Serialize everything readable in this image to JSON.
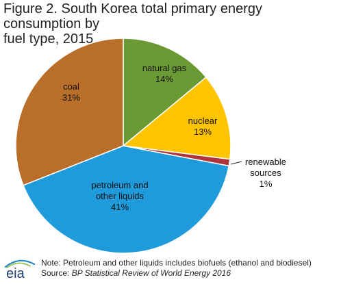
{
  "title": {
    "line1": "Figure 2. South Korea total primary energy consumption by",
    "line2": "fuel type, 2015"
  },
  "chart_data": {
    "type": "pie",
    "slices": [
      {
        "key": "natural-gas",
        "label_lines": [
          "natural gas",
          "14%"
        ],
        "value": 14,
        "color": "#6b9a35"
      },
      {
        "key": "nuclear",
        "label_lines": [
          "nuclear",
          "13%"
        ],
        "value": 13,
        "color": "#ffc400"
      },
      {
        "key": "renewable",
        "label_lines": [
          "renewable",
          "sources",
          "1%"
        ],
        "value": 1,
        "color": "#b0333a"
      },
      {
        "key": "petroleum",
        "label_lines": [
          "petroleum and",
          "other liquids",
          "41%"
        ],
        "value": 41,
        "color": "#1f9adb"
      },
      {
        "key": "coal",
        "label_lines": [
          "coal",
          "31%"
        ],
        "value": 31,
        "color": "#b96e2a"
      }
    ]
  },
  "footer": {
    "logo_text": "eia",
    "note": "Note: Petroleum and other liquids includes biofuels (ethanol and biodiesel)",
    "source_prefix": "Source: ",
    "source_title": "BP Statistical Review of World Energy 2016"
  }
}
